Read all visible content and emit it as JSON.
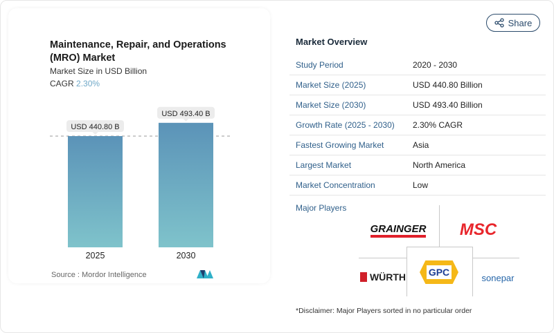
{
  "share_label": "Share",
  "chart_data": {
    "type": "bar",
    "title": "Maintenance, Repair, and Operations (MRO) Market",
    "subtitle": "Market Size in USD Billion",
    "cagr_label": "CAGR",
    "cagr_value": "2.30%",
    "categories": [
      "2025",
      "2030"
    ],
    "values": [
      440.8,
      493.4
    ],
    "data_labels": [
      "USD 440.80 B",
      "USD 493.40 B"
    ],
    "ylim": [
      0,
      500
    ],
    "colors": {
      "bar_top": "#5b93b8",
      "bar_bottom": "#7fc3cb"
    },
    "source": "Source :  Mordor Intelligence"
  },
  "overview": {
    "title": "Market Overview",
    "rows": [
      {
        "key": "Study Period",
        "value": "2020 - 2030"
      },
      {
        "key": "Market Size (2025)",
        "value": "USD 440.80 Billion"
      },
      {
        "key": "Market Size (2030)",
        "value": "USD 493.40 Billion"
      },
      {
        "key": "Growth Rate (2025 - 2030)",
        "value": "2.30% CAGR"
      },
      {
        "key": "Fastest Growing Market",
        "value": "Asia"
      },
      {
        "key": "Largest Market",
        "value": "North America"
      },
      {
        "key": "Market Concentration",
        "value": "Low"
      }
    ],
    "major_players_label": "Major Players",
    "players": [
      "GRAINGER",
      "MSC",
      "WÜRTH",
      "GPC",
      "sonepar"
    ],
    "disclaimer": "*Disclaimer: Major Players sorted in no particular order"
  }
}
